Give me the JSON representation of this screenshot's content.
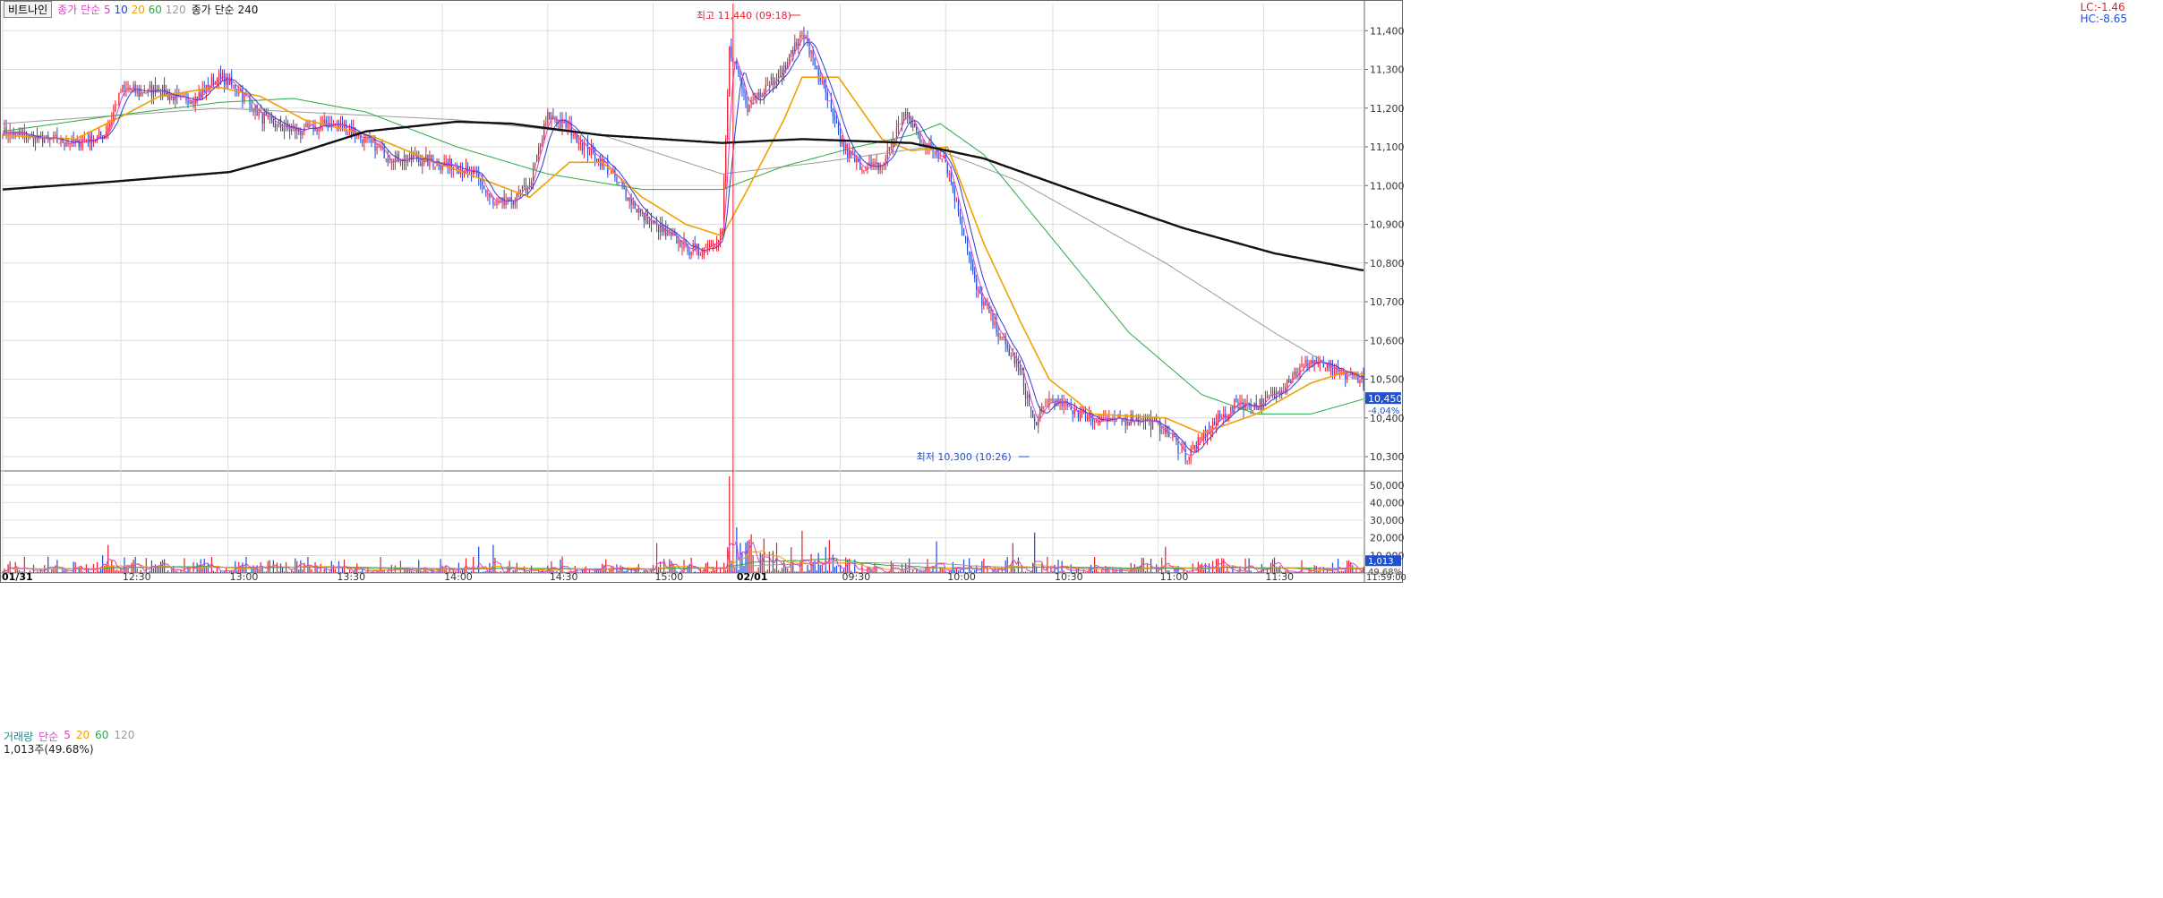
{
  "legend": {
    "instrument": "비트나인",
    "ma_label": "종가 단순",
    "ma_periods": [
      "5",
      "10",
      "20",
      "60",
      "120"
    ],
    "ma240_label": "종가 단순 240"
  },
  "range": {
    "lc": "LC:-1.46",
    "hc": "HC:-8.65"
  },
  "volume_legend": {
    "label": "거래량",
    "ma_label": "단순",
    "periods": [
      "5",
      "20",
      "60",
      "120"
    ],
    "current": "1,013주(49.68%)"
  },
  "colors": {
    "up": "#e8202a",
    "down": "#1f4fd6",
    "ma5": "#e040c8",
    "ma10": "#2a3fd0",
    "ma20": "#f0a000",
    "ma60": "#2aa845",
    "ma120": "#9a9a9a",
    "ma240": "#111111",
    "grid": "#dcdcdc",
    "annotation": "#e8202a",
    "annotation_low": "#1f4fd6",
    "current_bg": "#2050d0"
  },
  "chart_data": [
    {
      "type": "candlestick",
      "title": "비트나인",
      "y_ticks": [
        10300,
        10400,
        10500,
        10600,
        10700,
        10800,
        10900,
        11000,
        11100,
        11200,
        11300,
        11400
      ],
      "y_tick_labels": [
        "10,300",
        "10,400",
        "10,500",
        "10,600",
        "10,700",
        "10,800",
        "10,900",
        "11,000",
        "11,100",
        "11,200",
        "11,300",
        "11,400"
      ],
      "ylim": [
        10270,
        11470
      ],
      "x_ticks": [
        "01/31",
        "12:30",
        "13:00",
        "13:30",
        "14:00",
        "14:30",
        "15:00",
        "02/01",
        "09:30",
        "10:00",
        "10:30",
        "11:00",
        "11:30"
      ],
      "annotations": {
        "high": {
          "text": "최고 11,440 (09:18)",
          "value": 11440
        },
        "low": {
          "text": "최저 10,300 (10:26)",
          "value": 10300
        }
      },
      "current_price": {
        "value": 10450,
        "label": "10,450",
        "change": "-4.04%"
      },
      "series_anchors": {
        "close": [
          [
            0,
            11140
          ],
          [
            20,
            11120
          ],
          [
            40,
            11110
          ],
          [
            56,
            11130
          ],
          [
            66,
            11250
          ],
          [
            76,
            11240
          ],
          [
            86,
            11250
          ],
          [
            96,
            11220
          ],
          [
            108,
            11230
          ],
          [
            118,
            11280
          ],
          [
            130,
            11250
          ],
          [
            142,
            11180
          ],
          [
            154,
            11150
          ],
          [
            166,
            11140
          ],
          [
            178,
            11160
          ],
          [
            190,
            11150
          ],
          [
            202,
            11110
          ],
          [
            214,
            11070
          ],
          [
            226,
            11070
          ],
          [
            238,
            11060
          ],
          [
            250,
            11050
          ],
          [
            262,
            11020
          ],
          [
            270,
            10950
          ],
          [
            280,
            10960
          ],
          [
            290,
            11000
          ],
          [
            300,
            11180
          ],
          [
            312,
            11150
          ],
          [
            320,
            11100
          ],
          [
            330,
            11060
          ],
          [
            340,
            11000
          ],
          [
            352,
            10920
          ],
          [
            364,
            10880
          ],
          [
            376,
            10840
          ],
          [
            384,
            10830
          ],
          [
            396,
            10880
          ],
          [
            400,
            11350
          ],
          [
            410,
            11200
          ],
          [
            420,
            11260
          ],
          [
            430,
            11300
          ],
          [
            440,
            11400
          ],
          [
            452,
            11250
          ],
          [
            462,
            11100
          ],
          [
            472,
            11050
          ],
          [
            484,
            11050
          ],
          [
            496,
            11190
          ],
          [
            508,
            11100
          ],
          [
            518,
            11080
          ],
          [
            528,
            10900
          ],
          [
            536,
            10730
          ],
          [
            548,
            10620
          ],
          [
            560,
            10520
          ],
          [
            568,
            10380
          ],
          [
            576,
            10450
          ],
          [
            590,
            10420
          ],
          [
            600,
            10400
          ],
          [
            612,
            10390
          ],
          [
            626,
            10400
          ],
          [
            640,
            10370
          ],
          [
            652,
            10300
          ],
          [
            666,
            10380
          ],
          [
            680,
            10440
          ],
          [
            690,
            10430
          ],
          [
            700,
            10460
          ],
          [
            710,
            10510
          ],
          [
            720,
            10550
          ],
          [
            732,
            10520
          ],
          [
            748,
            10500
          ],
          [
            750,
            10450
          ]
        ],
        "ma20": [
          [
            0,
            11130
          ],
          [
            40,
            11120
          ],
          [
            66,
            11180
          ],
          [
            86,
            11230
          ],
          [
            118,
            11255
          ],
          [
            142,
            11230
          ],
          [
            166,
            11170
          ],
          [
            202,
            11130
          ],
          [
            238,
            11060
          ],
          [
            262,
            11020
          ],
          [
            290,
            10970
          ],
          [
            312,
            11060
          ],
          [
            330,
            11060
          ],
          [
            352,
            10970
          ],
          [
            376,
            10900
          ],
          [
            396,
            10870
          ],
          [
            410,
            10990
          ],
          [
            430,
            11170
          ],
          [
            440,
            11280
          ],
          [
            460,
            11280
          ],
          [
            484,
            11120
          ],
          [
            500,
            11090
          ],
          [
            520,
            11100
          ],
          [
            540,
            10850
          ],
          [
            560,
            10650
          ],
          [
            576,
            10500
          ],
          [
            600,
            10410
          ],
          [
            640,
            10400
          ],
          [
            660,
            10360
          ],
          [
            690,
            10410
          ],
          [
            720,
            10490
          ],
          [
            740,
            10520
          ],
          [
            750,
            10510
          ]
        ],
        "ma60": [
          [
            0,
            11140
          ],
          [
            60,
            11180
          ],
          [
            120,
            11215
          ],
          [
            160,
            11225
          ],
          [
            200,
            11190
          ],
          [
            250,
            11100
          ],
          [
            300,
            11030
          ],
          [
            352,
            10990
          ],
          [
            396,
            10990
          ],
          [
            430,
            11050
          ],
          [
            470,
            11100
          ],
          [
            500,
            11130
          ],
          [
            516,
            11160
          ],
          [
            540,
            11080
          ],
          [
            580,
            10850
          ],
          [
            620,
            10620
          ],
          [
            660,
            10460
          ],
          [
            690,
            10410
          ],
          [
            720,
            10410
          ],
          [
            750,
            10450
          ]
        ],
        "ma120": [
          [
            0,
            11160
          ],
          [
            120,
            11200
          ],
          [
            250,
            11170
          ],
          [
            330,
            11130
          ],
          [
            396,
            11030
          ],
          [
            450,
            11060
          ],
          [
            510,
            11100
          ],
          [
            560,
            11010
          ],
          [
            640,
            10800
          ],
          [
            700,
            10620
          ],
          [
            740,
            10510
          ],
          [
            750,
            10490
          ]
        ],
        "ma240": [
          [
            0,
            10990
          ],
          [
            60,
            11010
          ],
          [
            125,
            11035
          ],
          [
            160,
            11080
          ],
          [
            200,
            11140
          ],
          [
            250,
            11165
          ],
          [
            280,
            11160
          ],
          [
            330,
            11130
          ],
          [
            396,
            11110
          ],
          [
            440,
            11120
          ],
          [
            500,
            11110
          ],
          [
            540,
            11070
          ],
          [
            600,
            10970
          ],
          [
            650,
            10890
          ],
          [
            700,
            10825
          ],
          [
            750,
            10780
          ]
        ]
      }
    },
    {
      "type": "bar",
      "title": "거래량",
      "y_ticks": [
        10000,
        20000,
        30000,
        40000,
        50000
      ],
      "y_tick_labels": [
        "10,000",
        "20,000",
        "30,000",
        "40,000",
        "50,000"
      ],
      "ylim": [
        0,
        57000
      ],
      "current_label": "1,013",
      "current_pct": "49.68%",
      "end_time_label": "11:59:00",
      "spikes": [
        [
          55,
          10000
        ],
        [
          58,
          16000
        ],
        [
          262,
          15000
        ],
        [
          270,
          16000
        ],
        [
          360,
          17000
        ],
        [
          400,
          55000
        ],
        [
          404,
          26000
        ],
        [
          412,
          22000
        ],
        [
          440,
          24000
        ],
        [
          514,
          18000
        ],
        [
          556,
          17000
        ],
        [
          568,
          23000
        ],
        [
          640,
          15000
        ]
      ]
    }
  ]
}
